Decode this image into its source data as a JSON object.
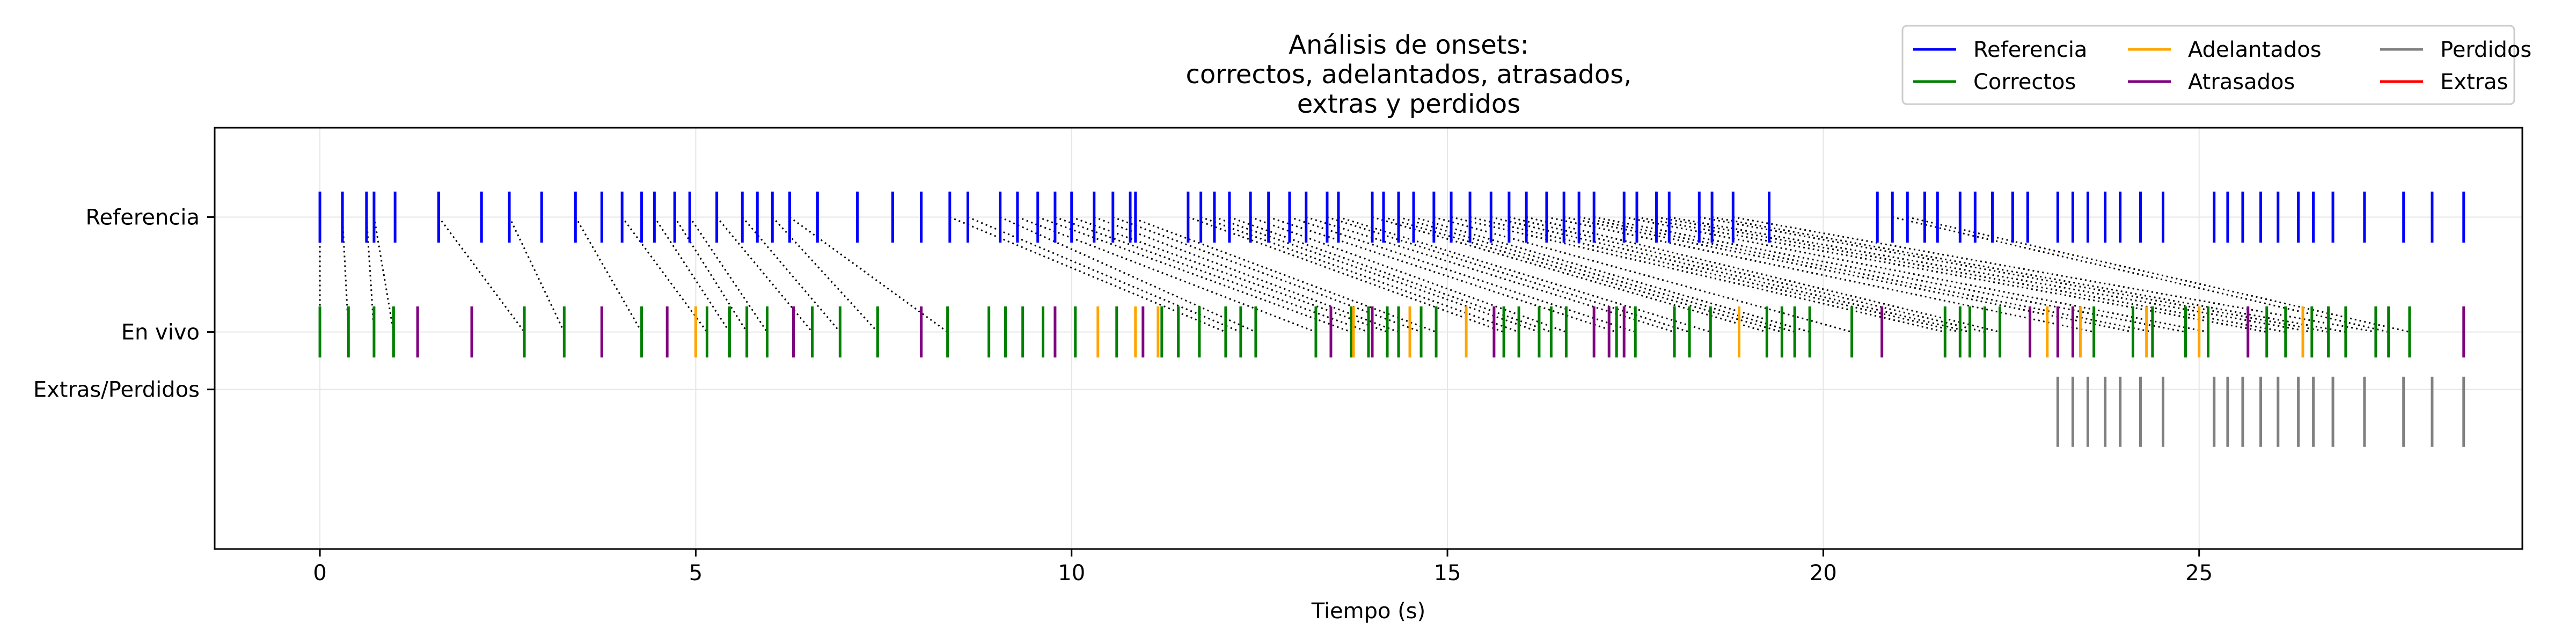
{
  "chart_data": {
    "type": "event",
    "title": [
      "Análisis de onsets:",
      "correctos, adelantados, atrasados,",
      "extras y perdidos"
    ],
    "xlabel": "Tiempo (s)",
    "xlim": [
      -1.4,
      29.3
    ],
    "ylim": [
      -1.7,
      1.6
    ],
    "x_ticks": [
      0,
      5,
      10,
      15,
      20,
      25
    ],
    "y_ticks": [
      {
        "label": "Referencia",
        "value": 0.9
      },
      {
        "label": "En vivo",
        "value": 0.0
      },
      {
        "label": "Extras/Perdidos",
        "value": -0.45
      }
    ],
    "grid": true,
    "legend_position": "top-right",
    "colors": {
      "reference": "#0000ff",
      "correct": "#008000",
      "early": "#ffa500",
      "late": "#800080",
      "missed": "#808080",
      "extra": "#ff0000",
      "link": "#000000"
    },
    "legend": [
      {
        "label": "Referencia",
        "color": "#0000ff"
      },
      {
        "label": "Correctos",
        "color": "#008000"
      },
      {
        "label": "Adelantados",
        "color": "#ffa500"
      },
      {
        "label": "Atrasados",
        "color": "#800080"
      },
      {
        "label": "Perdidos",
        "color": "#808080"
      },
      {
        "label": "Extras",
        "color": "#ff0000"
      }
    ],
    "reference_onsets": [
      0.0,
      0.3,
      0.62,
      0.72,
      1.0,
      1.58,
      2.15,
      2.52,
      2.95,
      3.4,
      3.75,
      4.02,
      4.28,
      4.45,
      4.72,
      4.92,
      5.28,
      5.62,
      5.82,
      6.02,
      6.25,
      6.62,
      7.15,
      7.62,
      8.0,
      8.38,
      8.62,
      9.05,
      9.28,
      9.55,
      9.78,
      10.0,
      10.3,
      10.55,
      10.78,
      10.85,
      11.55,
      11.72,
      11.9,
      12.1,
      12.38,
      12.62,
      12.9,
      13.12,
      13.4,
      13.55,
      14.0,
      14.15,
      14.35,
      14.55,
      14.82,
      15.05,
      15.3,
      15.58,
      15.82,
      16.05,
      16.32,
      16.55,
      16.75,
      16.95,
      17.35,
      17.52,
      17.78,
      17.95,
      18.35,
      18.52,
      18.8,
      19.28,
      20.72,
      20.92,
      21.12,
      21.35,
      21.52,
      21.82,
      22.02,
      22.25,
      22.52,
      22.72,
      23.12,
      23.32,
      23.52,
      23.75,
      23.95,
      24.22,
      24.52,
      25.2,
      25.38,
      25.58,
      25.82,
      26.05,
      26.32,
      26.52,
      26.78,
      27.2,
      27.72,
      28.1,
      28.52
    ],
    "live_correct": [
      0.0,
      0.38,
      0.72,
      0.98,
      2.72,
      3.25,
      4.28,
      5.15,
      5.45,
      5.68,
      5.95,
      6.55,
      6.92,
      7.42,
      8.35,
      8.9,
      9.12,
      9.35,
      9.62,
      10.05,
      10.6,
      11.2,
      11.42,
      11.7,
      12.05,
      12.25,
      12.45,
      13.25,
      13.72,
      13.95,
      14.2,
      14.35,
      14.65,
      14.85,
      15.75,
      15.95,
      16.22,
      16.38,
      16.58,
      17.25,
      17.5,
      18.02,
      18.22,
      18.5,
      19.25,
      19.45,
      19.62,
      19.82,
      20.38,
      21.62,
      21.82,
      21.95,
      22.15,
      22.35,
      23.6,
      24.12,
      24.38,
      24.82,
      25.12,
      25.9,
      26.15,
      26.5,
      26.72,
      26.95,
      27.35,
      27.52,
      27.8
    ],
    "live_early": [
      5.0,
      10.35,
      10.85,
      11.15,
      13.75,
      14.5,
      15.25,
      18.88,
      22.98,
      23.42,
      24.3,
      25.0,
      26.38
    ],
    "live_late": [
      1.3,
      2.02,
      3.75,
      4.62,
      6.3,
      8.0,
      9.78,
      10.95,
      13.45,
      14.0,
      15.62,
      16.95,
      17.15,
      17.35,
      20.78,
      22.75,
      23.12,
      23.32,
      25.65,
      28.52
    ],
    "missed_onsets": [
      23.12,
      23.32,
      23.52,
      23.75,
      23.95,
      24.22,
      24.52,
      25.2,
      25.38,
      25.58,
      25.82,
      26.05,
      26.32,
      26.52,
      26.78,
      27.2,
      27.72,
      28.1,
      28.52
    ],
    "extra_onsets": [],
    "links": [
      [
        0.0,
        0.0
      ],
      [
        0.3,
        0.38
      ],
      [
        0.62,
        0.72
      ],
      [
        0.72,
        0.98
      ],
      [
        1.58,
        2.72
      ],
      [
        2.52,
        3.25
      ],
      [
        3.4,
        4.28
      ],
      [
        4.02,
        5.15
      ],
      [
        4.45,
        5.45
      ],
      [
        4.72,
        5.68
      ],
      [
        4.92,
        5.95
      ],
      [
        5.28,
        6.55
      ],
      [
        5.62,
        6.92
      ],
      [
        6.02,
        7.42
      ],
      [
        6.25,
        8.35
      ],
      [
        8.38,
        12.05
      ],
      [
        8.62,
        12.25
      ],
      [
        9.05,
        12.45
      ],
      [
        9.28,
        13.25
      ],
      [
        9.55,
        13.72
      ],
      [
        9.78,
        13.95
      ],
      [
        10.0,
        14.2
      ],
      [
        10.3,
        14.35
      ],
      [
        10.55,
        14.65
      ],
      [
        10.78,
        14.85
      ],
      [
        11.55,
        15.75
      ],
      [
        11.72,
        15.95
      ],
      [
        11.9,
        16.22
      ],
      [
        12.1,
        16.38
      ],
      [
        12.38,
        16.58
      ],
      [
        12.62,
        17.25
      ],
      [
        12.9,
        17.5
      ],
      [
        13.12,
        18.02
      ],
      [
        13.4,
        18.22
      ],
      [
        13.55,
        18.5
      ],
      [
        14.0,
        19.25
      ],
      [
        14.15,
        19.45
      ],
      [
        14.35,
        19.62
      ],
      [
        14.55,
        19.82
      ],
      [
        14.82,
        20.38
      ],
      [
        15.05,
        21.62
      ],
      [
        15.3,
        21.82
      ],
      [
        15.58,
        21.95
      ],
      [
        15.82,
        22.15
      ],
      [
        16.05,
        22.35
      ],
      [
        16.32,
        23.6
      ],
      [
        16.55,
        24.12
      ],
      [
        16.75,
        24.38
      ],
      [
        16.95,
        24.82
      ],
      [
        17.35,
        25.12
      ],
      [
        17.52,
        25.9
      ],
      [
        17.78,
        26.15
      ],
      [
        17.95,
        26.5
      ],
      [
        18.35,
        26.72
      ],
      [
        18.52,
        26.95
      ],
      [
        18.8,
        27.35
      ],
      [
        20.92,
        27.52
      ],
      [
        21.12,
        27.8
      ]
    ]
  }
}
